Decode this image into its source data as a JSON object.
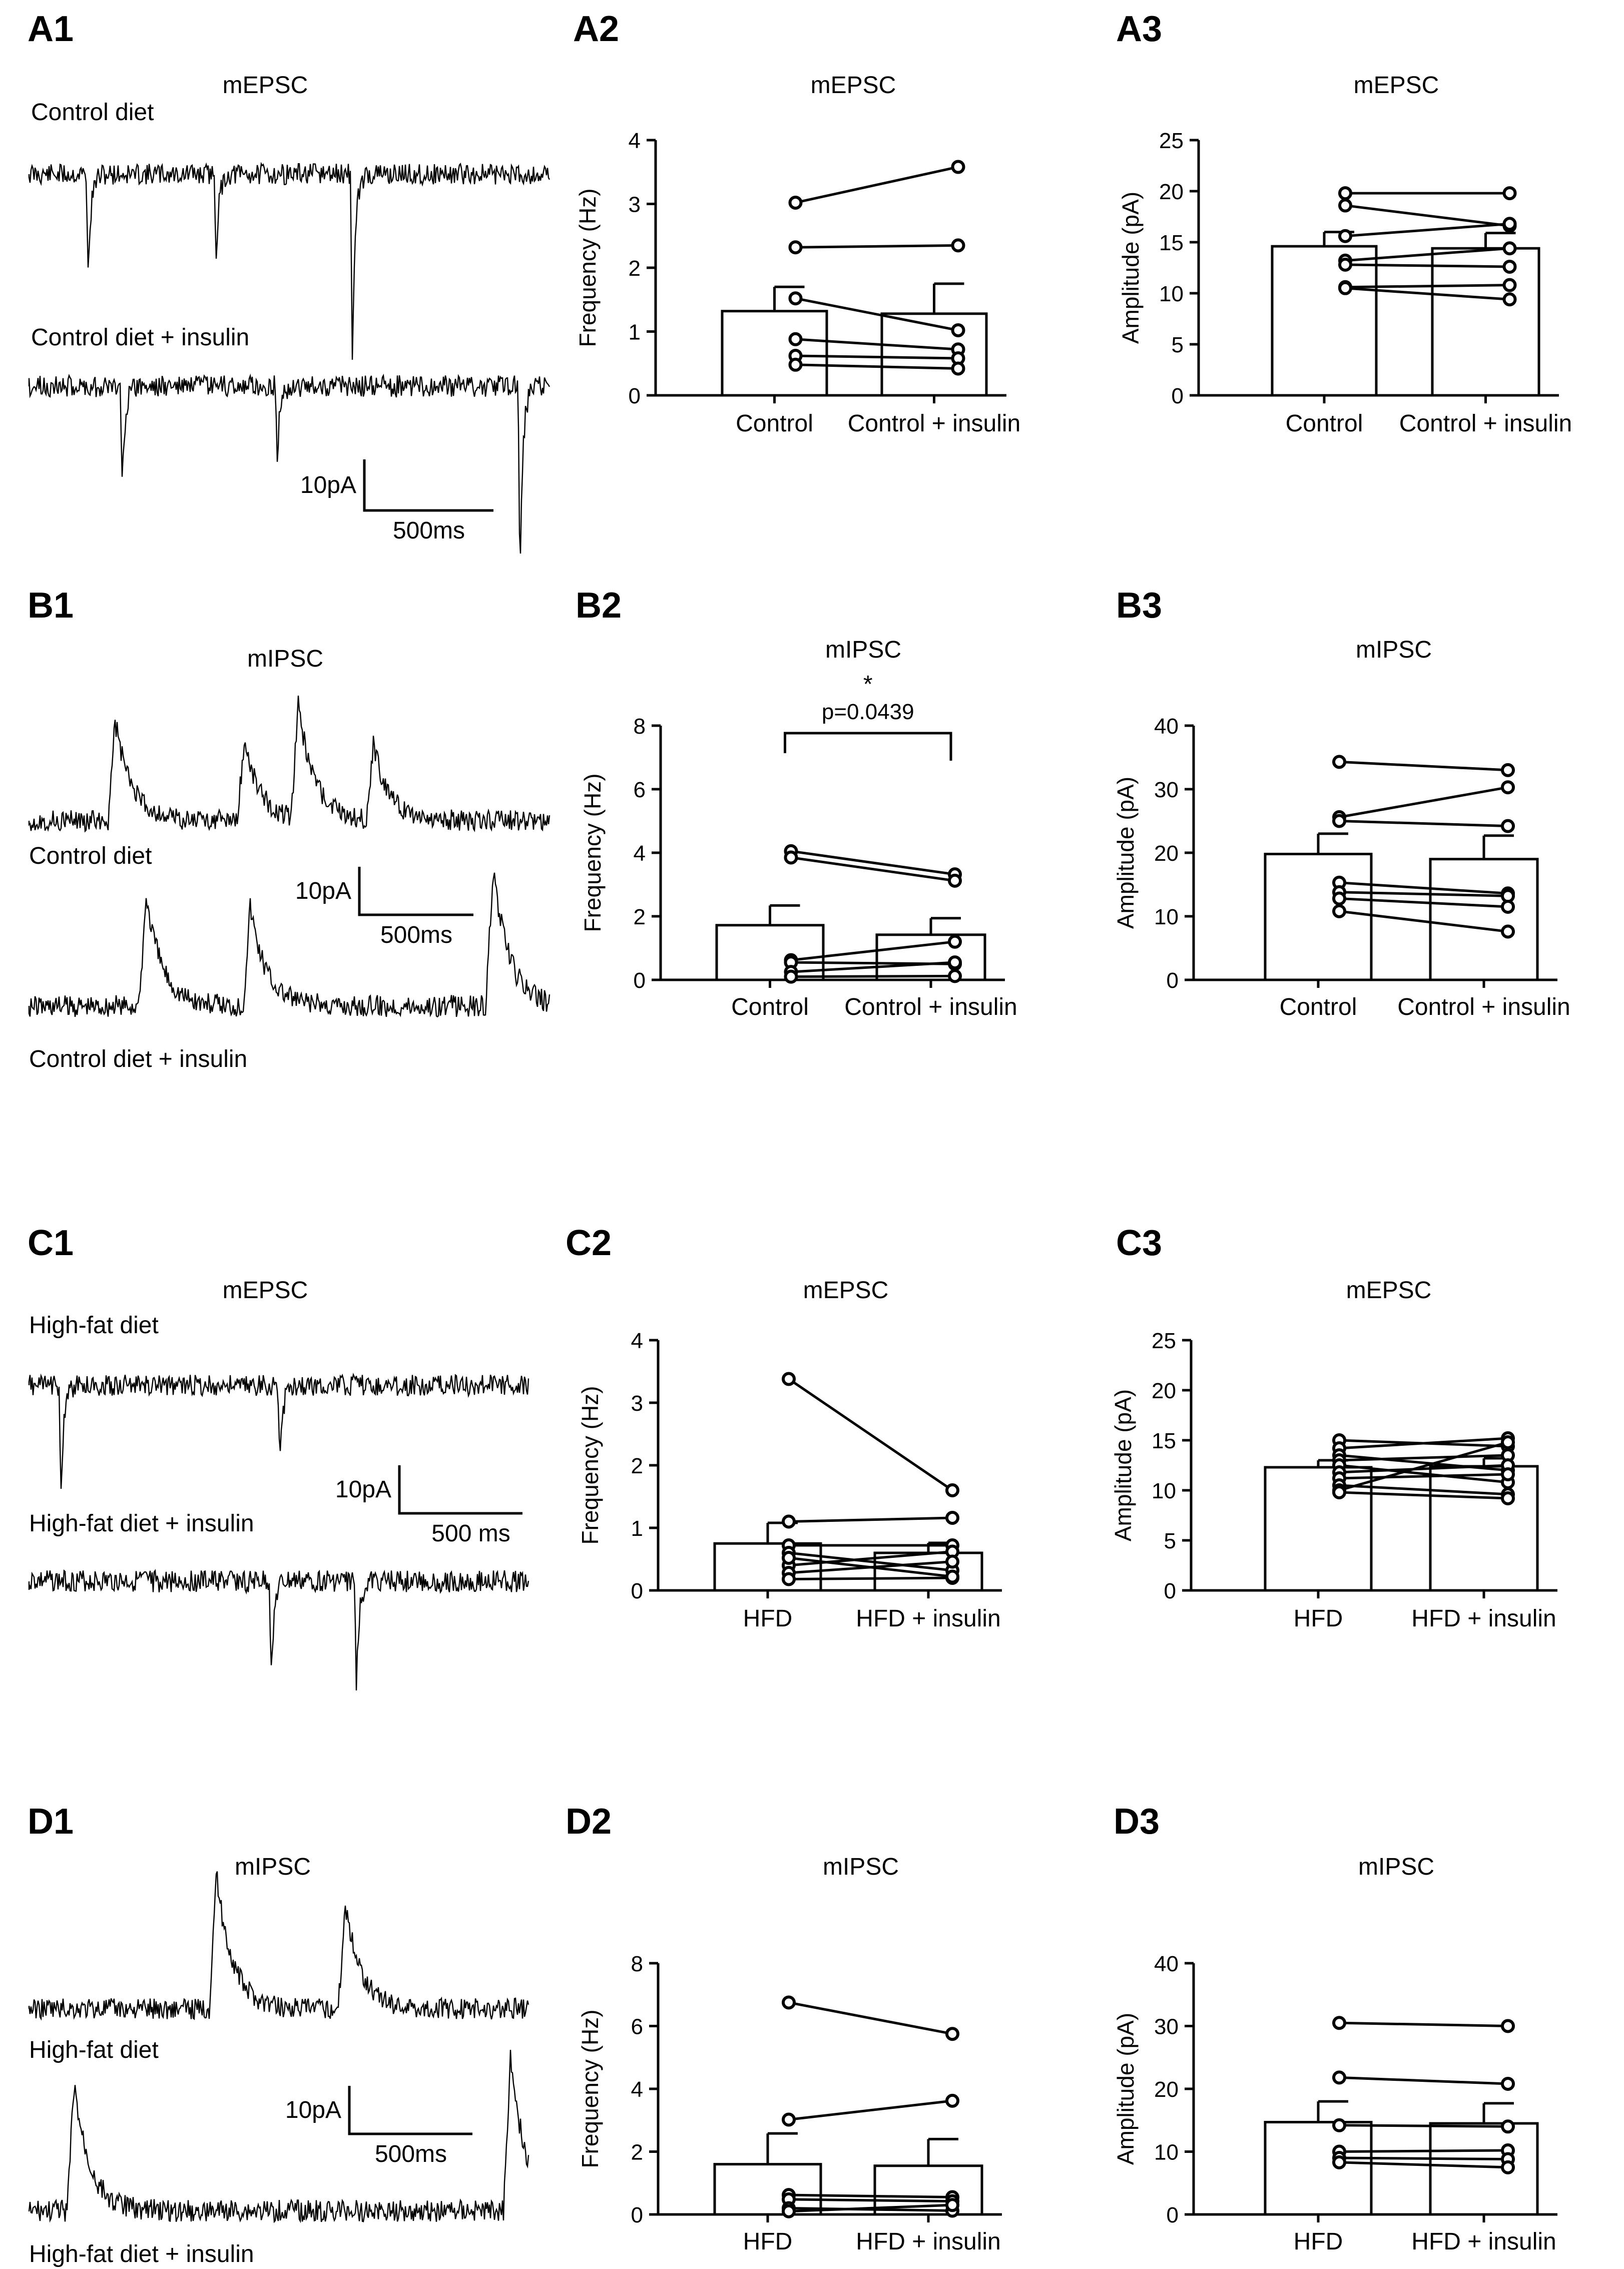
{
  "chart_data": [
    {
      "id": "A2",
      "type": "bar",
      "panel_label": "A2",
      "title": "mEPSC",
      "ylabel": "Frequency (Hz)",
      "xlabel": "",
      "categories": [
        "Control",
        "Control + insulin"
      ],
      "ylim": [
        0,
        4
      ],
      "yticks": [
        0,
        1,
        2,
        3,
        4
      ],
      "ytick_labels": [
        "0",
        "1",
        "2",
        "3",
        "4"
      ],
      "bar_means": [
        1.32,
        1.28
      ],
      "bar_sem": [
        0.38,
        0.47
      ],
      "pairs": [
        [
          3.02,
          3.58
        ],
        [
          2.32,
          2.35
        ],
        [
          1.52,
          1.02
        ],
        [
          0.88,
          0.72
        ],
        [
          0.62,
          0.58
        ],
        [
          0.48,
          0.42
        ]
      ]
    },
    {
      "id": "A3",
      "type": "bar",
      "panel_label": "A3",
      "title": "mEPSC",
      "ylabel": "Amplitude (pA)",
      "xlabel": "",
      "categories": [
        "Control",
        "Control + insulin"
      ],
      "ylim": [
        0,
        25
      ],
      "yticks": [
        0,
        5,
        10,
        15,
        20,
        25
      ],
      "ytick_labels": [
        "0",
        "5",
        "10",
        "15",
        "20",
        "25"
      ],
      "bar_means": [
        14.6,
        14.4
      ],
      "bar_sem": [
        1.4,
        1.5
      ],
      "pairs": [
        [
          19.8,
          19.8
        ],
        [
          18.6,
          16.6
        ],
        [
          15.6,
          16.8
        ],
        [
          13.2,
          14.4
        ],
        [
          12.8,
          12.6
        ],
        [
          10.6,
          10.8
        ],
        [
          10.5,
          9.4
        ]
      ]
    },
    {
      "id": "B2",
      "type": "bar",
      "panel_label": "B2",
      "title": "mIPSC",
      "ylabel": "Frequency (Hz)",
      "xlabel": "",
      "categories": [
        "Control",
        "Control + insulin"
      ],
      "ylim": [
        0,
        8
      ],
      "yticks": [
        0,
        2,
        4,
        6,
        8
      ],
      "ytick_labels": [
        "0",
        "2",
        "4",
        "6",
        "8"
      ],
      "bar_means": [
        1.72,
        1.42
      ],
      "bar_sem": [
        0.62,
        0.52
      ],
      "pairs": [
        [
          4.05,
          3.32
        ],
        [
          3.85,
          3.12
        ],
        [
          0.62,
          1.2
        ],
        [
          0.55,
          0.5
        ],
        [
          0.25,
          0.55
        ],
        [
          0.1,
          0.12
        ]
      ],
      "significance": {
        "star": "*",
        "text": "p=0.0439"
      }
    },
    {
      "id": "B3",
      "type": "bar",
      "panel_label": "B3",
      "title": "mIPSC",
      "ylabel": "Amplitude (pA)",
      "xlabel": "",
      "categories": [
        "Control",
        "Control + insulin"
      ],
      "ylim": [
        0,
        40
      ],
      "yticks": [
        0,
        10,
        20,
        30,
        40
      ],
      "ytick_labels": [
        "0",
        "10",
        "20",
        "30",
        "40"
      ],
      "bar_means": [
        19.8,
        19.0
      ],
      "bar_sem": [
        3.2,
        3.7
      ],
      "pairs": [
        [
          34.3,
          33.0
        ],
        [
          25.6,
          30.3
        ],
        [
          25.0,
          24.2
        ],
        [
          15.3,
          13.6
        ],
        [
          13.8,
          13.2
        ],
        [
          12.8,
          11.5
        ],
        [
          10.8,
          7.6
        ]
      ]
    },
    {
      "id": "C2",
      "type": "bar",
      "panel_label": "C2",
      "title": "mEPSC",
      "ylabel": "Frequency (Hz)",
      "xlabel": "",
      "categories": [
        "HFD",
        "HFD + insulin"
      ],
      "ylim": [
        0,
        4
      ],
      "yticks": [
        0,
        1,
        2,
        3,
        4
      ],
      "ytick_labels": [
        "0",
        "1",
        "2",
        "3",
        "4"
      ],
      "bar_means": [
        0.75,
        0.6
      ],
      "bar_sem": [
        0.33,
        0.16
      ],
      "pairs": [
        [
          3.38,
          1.6
        ],
        [
          1.1,
          1.16
        ],
        [
          0.72,
          0.72
        ],
        [
          0.6,
          0.32
        ],
        [
          0.4,
          0.62
        ],
        [
          0.28,
          0.46
        ],
        [
          0.18,
          0.2
        ],
        [
          0.52,
          0.22
        ]
      ]
    },
    {
      "id": "C3",
      "type": "bar",
      "panel_label": "C3",
      "title": "mEPSC",
      "ylabel": "Amplitude (pA)",
      "xlabel": "",
      "categories": [
        "HFD",
        "HFD + insulin"
      ],
      "ylim": [
        0,
        25
      ],
      "yticks": [
        0,
        5,
        10,
        15,
        20,
        25
      ],
      "ytick_labels": [
        "0",
        "5",
        "10",
        "15",
        "20",
        "25"
      ],
      "bar_means": [
        12.3,
        12.4
      ],
      "bar_sem": [
        0.7,
        0.8
      ],
      "pairs": [
        [
          15.0,
          14.4
        ],
        [
          14.2,
          15.2
        ],
        [
          13.5,
          12.0
        ],
        [
          13.0,
          13.5
        ],
        [
          12.5,
          10.8
        ],
        [
          11.8,
          12.5
        ],
        [
          11.2,
          11.6
        ],
        [
          10.5,
          9.6
        ],
        [
          10.0,
          14.8
        ],
        [
          9.8,
          9.2
        ]
      ]
    },
    {
      "id": "D2",
      "type": "bar",
      "panel_label": "D2",
      "title": "mIPSC",
      "ylabel": "Frequency (Hz)",
      "xlabel": "",
      "categories": [
        "HFD",
        "HFD + insulin"
      ],
      "ylim": [
        0,
        8
      ],
      "yticks": [
        0,
        2,
        4,
        6,
        8
      ],
      "ytick_labels": [
        "0",
        "2",
        "4",
        "6",
        "8"
      ],
      "bar_means": [
        1.6,
        1.55
      ],
      "bar_sem": [
        0.98,
        0.85
      ],
      "pairs": [
        [
          6.75,
          5.75
        ],
        [
          3.02,
          3.62
        ],
        [
          0.62,
          0.55
        ],
        [
          0.48,
          0.42
        ],
        [
          0.2,
          0.12
        ],
        [
          0.1,
          0.3
        ]
      ]
    },
    {
      "id": "D3",
      "type": "bar",
      "panel_label": "D3",
      "title": "mIPSC",
      "ylabel": "Amplitude (pA)",
      "xlabel": "",
      "categories": [
        "HFD",
        "HFD + insulin"
      ],
      "ylim": [
        0,
        40
      ],
      "yticks": [
        0,
        10,
        20,
        30,
        40
      ],
      "ytick_labels": [
        "0",
        "10",
        "20",
        "30",
        "40"
      ],
      "bar_means": [
        14.7,
        14.5
      ],
      "bar_sem": [
        3.3,
        3.2
      ],
      "pairs": [
        [
          30.5,
          30.0
        ],
        [
          21.8,
          20.8
        ],
        [
          14.2,
          14.0
        ],
        [
          10.0,
          10.2
        ],
        [
          9.0,
          8.8
        ],
        [
          8.3,
          7.5
        ]
      ]
    }
  ],
  "traces": [
    {
      "id": "A1",
      "panel_label": "A1",
      "title": "mEPSC",
      "kind": "epsc",
      "labels": [
        "Control diet",
        "Control diet + insulin"
      ],
      "scale": {
        "amplitude": "10pA",
        "time": "500ms"
      }
    },
    {
      "id": "B1",
      "panel_label": "B1",
      "title": "mIPSC",
      "kind": "ipsc",
      "labels": [
        "Control diet",
        "Control diet + insulin"
      ],
      "scale": {
        "amplitude": "10pA",
        "time": "500ms"
      }
    },
    {
      "id": "C1",
      "panel_label": "C1",
      "title": "mEPSC",
      "kind": "epsc",
      "labels": [
        "High-fat diet",
        "High-fat diet + insulin"
      ],
      "scale": {
        "amplitude": "10pA",
        "time": "500 ms"
      }
    },
    {
      "id": "D1",
      "panel_label": "D1",
      "title": "mIPSC",
      "kind": "ipsc",
      "labels": [
        "High-fat diet",
        "High-fat diet + insulin"
      ],
      "scale": {
        "amplitude": "10pA",
        "time": "500ms"
      }
    }
  ]
}
